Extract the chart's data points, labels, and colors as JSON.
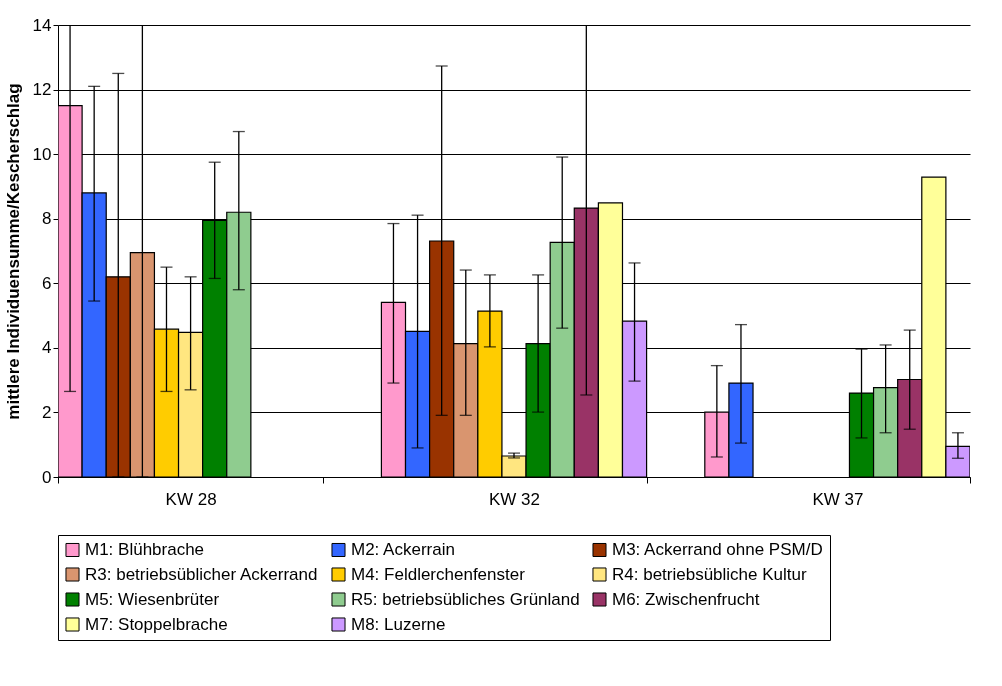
{
  "chart_data": {
    "type": "bar",
    "ylabel": "mittlere Individuensumme/Kescherschlag",
    "categories": [
      "KW 28",
      "KW 32",
      "KW 37"
    ],
    "ylim": [
      0,
      14
    ],
    "yticks": [
      0,
      2,
      4,
      6,
      8,
      10,
      12,
      14
    ],
    "grid": "y",
    "legend": "bottom",
    "series": [
      {
        "name": "M1: Blühbrache",
        "color": "#ff99cc",
        "values": [
          11.5,
          5.41,
          2.01
        ],
        "errors": [
          [
            2.65,
            14
          ],
          [
            2.91,
            7.85
          ],
          [
            0.62,
            3.45
          ]
        ]
      },
      {
        "name": "M2: Ackerrain",
        "color": "#3366ff",
        "values": [
          8.8,
          4.51,
          2.91
        ],
        "errors": [
          [
            5.45,
            12.1
          ],
          [
            0.9,
            8.11
          ],
          [
            1.05,
            4.72
          ]
        ]
      },
      {
        "name": "M3: Ackerrand ohne PSM/D",
        "color": "#993300",
        "values": [
          6.2,
          7.31,
          null
        ],
        "errors": [
          [
            0,
            12.5
          ],
          [
            1.91,
            12.73
          ],
          null
        ]
      },
      {
        "name": "R3: betriebsüblicher Ackerrand",
        "color": "#d9956f",
        "values": [
          6.95,
          4.13,
          null
        ],
        "errors": [
          [
            0,
            14
          ],
          [
            1.91,
            6.41
          ],
          null
        ]
      },
      {
        "name": "M4: Feldlerchenfenster",
        "color": "#ffcc00",
        "values": [
          4.58,
          5.14,
          null
        ],
        "errors": [
          [
            2.65,
            6.5
          ],
          [
            4.03,
            6.26
          ],
          null
        ]
      },
      {
        "name": "R4: betriebsübliche Kultur",
        "color": "#ffe680",
        "values": [
          4.48,
          0.65,
          null
        ],
        "errors": [
          [
            2.7,
            6.2
          ],
          [
            0.59,
            0.74
          ],
          null
        ]
      },
      {
        "name": "M5: Wiesenbrüter",
        "color": "#008000",
        "values": [
          7.95,
          4.13,
          2.6
        ],
        "errors": [
          [
            6.15,
            9.75
          ],
          [
            2.01,
            6.26
          ],
          [
            1.21,
            3.96
          ]
        ]
      },
      {
        "name": "R5: betriebsübliches Grünland",
        "color": "#8fcc8f",
        "values": [
          8.2,
          7.27,
          2.77
        ],
        "errors": [
          [
            5.8,
            10.7
          ],
          [
            4.61,
            9.91
          ],
          [
            1.37,
            4.09
          ]
        ]
      },
      {
        "name": "M6: Zwischenfrucht",
        "color": "#993366",
        "values": [
          null,
          8.33,
          3.02
        ],
        "errors": [
          null,
          [
            2.54,
            14
          ],
          [
            1.48,
            4.55
          ]
        ]
      },
      {
        "name": "M7: Stoppelbrache",
        "color": "#ffff99",
        "values": [
          null,
          8.49,
          9.29
        ]
      },
      {
        "name": "M8: Luzerne",
        "color": "#cc99ff",
        "values": [
          null,
          4.83,
          0.95
        ],
        "errors": [
          null,
          [
            2.97,
            6.63
          ],
          [
            0.58,
            1.37
          ]
        ]
      }
    ]
  }
}
